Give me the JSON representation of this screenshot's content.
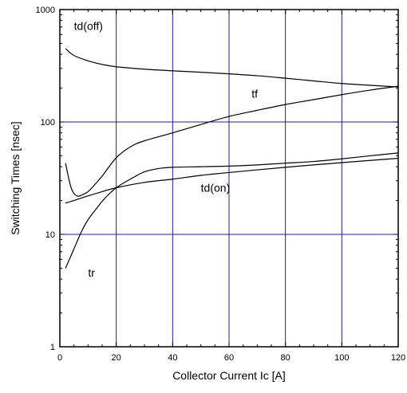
{
  "chart_data": {
    "type": "line",
    "xlabel": "Collector Current Ic [A]",
    "ylabel": "Switching Times [nsec]",
    "xlim": [
      0,
      120
    ],
    "ylim": [
      1,
      1000
    ],
    "y_scale": "log",
    "x_ticks": [
      "0",
      "20",
      "40",
      "60",
      "80",
      "100",
      "120"
    ],
    "y_ticks": [
      "1",
      "10",
      "100",
      "1000"
    ],
    "grid": {
      "vertical": [
        20,
        40,
        60,
        80,
        100
      ],
      "horizontal": [
        10,
        100
      ],
      "color": "#1f1f9e"
    },
    "series": [
      {
        "name": "td(off)",
        "label_at": [
          5,
          660
        ],
        "x": [
          2,
          5,
          10,
          15,
          20,
          30,
          40,
          50,
          60,
          70,
          80,
          90,
          100,
          110,
          120
        ],
        "y": [
          450,
          390,
          350,
          325,
          310,
          295,
          285,
          277,
          268,
          258,
          245,
          232,
          220,
          212,
          205
        ]
      },
      {
        "name": "tf",
        "label_at": [
          68,
          165
        ],
        "x": [
          2,
          4,
          6,
          8,
          10,
          12,
          15,
          20,
          25,
          30,
          40,
          50,
          60,
          70,
          80,
          90,
          100,
          110,
          120
        ],
        "y": [
          43,
          26,
          22,
          22.5,
          24,
          27,
          33,
          48,
          60,
          68,
          80,
          95,
          112,
          127,
          143,
          158,
          175,
          192,
          208
        ]
      },
      {
        "name": "td(on)",
        "label_at": [
          50,
          24
        ],
        "x": [
          2,
          5,
          10,
          15,
          20,
          30,
          40,
          50,
          60,
          70,
          80,
          90,
          100,
          110,
          120
        ],
        "y": [
          19,
          20,
          22,
          24,
          26,
          29,
          31,
          33.5,
          35.5,
          37.5,
          39.5,
          41.5,
          43.5,
          45.5,
          47.5
        ]
      },
      {
        "name": "tr",
        "label_at": [
          10,
          4.2
        ],
        "x": [
          2,
          4,
          6,
          8,
          10,
          13,
          16,
          20,
          25,
          30,
          35,
          40,
          50,
          60,
          70,
          80,
          90,
          100,
          110,
          120
        ],
        "y": [
          5,
          6.5,
          8.5,
          11,
          13.5,
          17,
          21,
          26,
          31,
          36,
          38.5,
          39.5,
          40,
          40.5,
          41.5,
          43,
          44.5,
          47,
          50,
          53
        ]
      }
    ]
  }
}
